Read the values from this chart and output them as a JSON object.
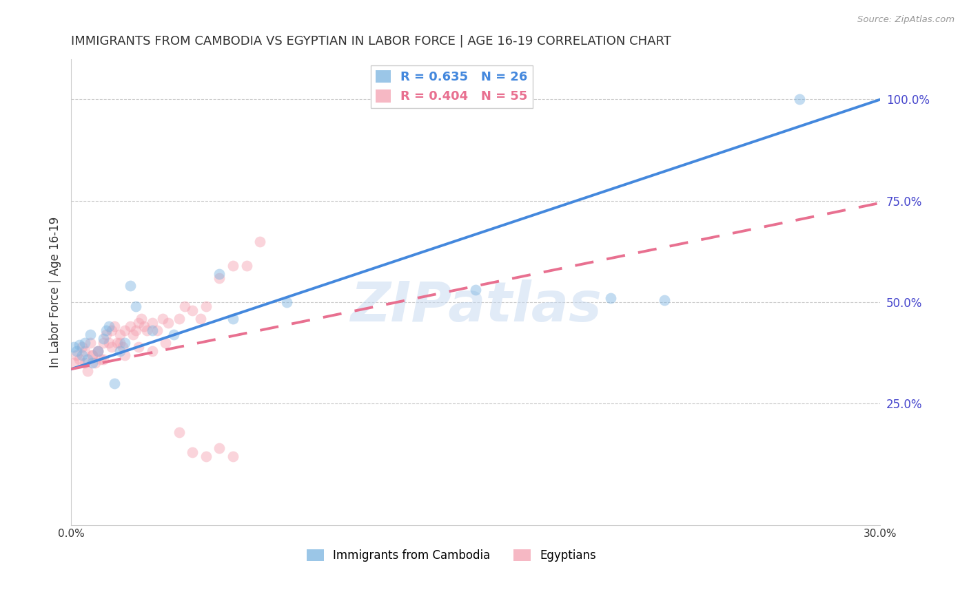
{
  "title": "IMMIGRANTS FROM CAMBODIA VS EGYPTIAN IN LABOR FORCE | AGE 16-19 CORRELATION CHART",
  "source": "Source: ZipAtlas.com",
  "ylabel": "In Labor Force | Age 16-19",
  "xlim": [
    0.0,
    0.3
  ],
  "ylim": [
    -0.05,
    1.1
  ],
  "cambodia_color": "#7ab3e0",
  "egypt_color": "#f4a0b0",
  "cambodia_line_color": "#4488dd",
  "egypt_line_color": "#e87090",
  "cambodia_R": 0.635,
  "cambodia_N": 26,
  "egypt_R": 0.404,
  "egypt_N": 55,
  "cambodia_x": [
    0.001,
    0.002,
    0.003,
    0.004,
    0.005,
    0.006,
    0.007,
    0.008,
    0.01,
    0.012,
    0.013,
    0.014,
    0.016,
    0.018,
    0.02,
    0.022,
    0.024,
    0.03,
    0.038,
    0.055,
    0.06,
    0.08,
    0.15,
    0.2,
    0.22,
    0.27
  ],
  "cambodia_y": [
    0.39,
    0.38,
    0.395,
    0.37,
    0.4,
    0.36,
    0.42,
    0.35,
    0.38,
    0.41,
    0.43,
    0.44,
    0.3,
    0.38,
    0.4,
    0.54,
    0.49,
    0.43,
    0.42,
    0.57,
    0.46,
    0.5,
    0.53,
    0.51,
    0.505,
    1.0
  ],
  "egypt_x": [
    0.001,
    0.002,
    0.003,
    0.004,
    0.005,
    0.006,
    0.007,
    0.008,
    0.009,
    0.01,
    0.011,
    0.012,
    0.013,
    0.014,
    0.015,
    0.016,
    0.017,
    0.018,
    0.019,
    0.02,
    0.022,
    0.023,
    0.024,
    0.025,
    0.026,
    0.027,
    0.028,
    0.03,
    0.032,
    0.034,
    0.036,
    0.04,
    0.042,
    0.045,
    0.048,
    0.05,
    0.055,
    0.06,
    0.065,
    0.07,
    0.005,
    0.008,
    0.01,
    0.012,
    0.015,
    0.018,
    0.02,
    0.025,
    0.03,
    0.035,
    0.04,
    0.045,
    0.05,
    0.055,
    0.06
  ],
  "egypt_y": [
    0.35,
    0.37,
    0.36,
    0.39,
    0.35,
    0.33,
    0.4,
    0.37,
    0.35,
    0.38,
    0.36,
    0.4,
    0.42,
    0.4,
    0.43,
    0.44,
    0.4,
    0.42,
    0.39,
    0.43,
    0.44,
    0.42,
    0.43,
    0.45,
    0.46,
    0.44,
    0.43,
    0.45,
    0.43,
    0.46,
    0.45,
    0.46,
    0.49,
    0.48,
    0.46,
    0.49,
    0.56,
    0.59,
    0.59,
    0.65,
    0.38,
    0.37,
    0.38,
    0.36,
    0.39,
    0.4,
    0.37,
    0.39,
    0.38,
    0.4,
    0.18,
    0.13,
    0.12,
    0.14,
    0.12
  ],
  "camb_line_x0": 0.0,
  "camb_line_y0": 0.335,
  "camb_line_x1": 0.3,
  "camb_line_y1": 1.0,
  "egypt_line_x0": 0.0,
  "egypt_line_y0": 0.335,
  "egypt_line_x1": 0.3,
  "egypt_line_y1": 0.745,
  "watermark": "ZIPatlas",
  "legend_label_cambodia": "Immigrants from Cambodia",
  "legend_label_egypt": "Egyptians",
  "background_color": "#ffffff",
  "grid_color": "#cccccc",
  "right_axis_color": "#4444cc",
  "title_fontsize": 13,
  "marker_size": 130,
  "marker_alpha": 0.45,
  "line_width": 2.8
}
